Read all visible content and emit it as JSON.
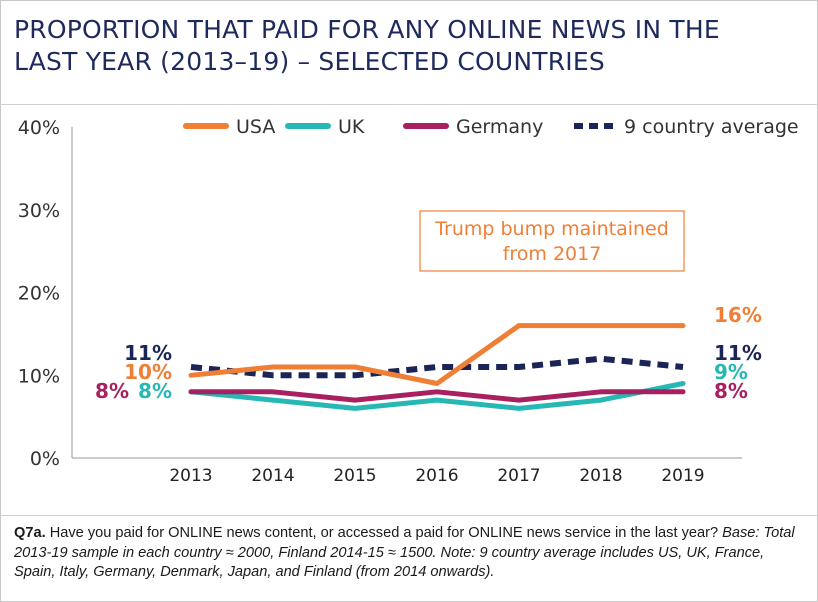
{
  "title_line1": "PROPORTION THAT PAID FOR ANY ONLINE NEWS IN THE",
  "title_line2": "LAST YEAR (2013–19) – SELECTED COUNTRIES",
  "note": {
    "q_label": "Q7a.",
    "q_text": " Have you paid for ONLINE news content, or accessed a paid for ONLINE news service in the last year? ",
    "base_text": "Base: Total 2013-19 sample in each country ≈ 2000, Finland 2014-15 ≈ 1500. Note: 9 country average includes US, UK, France, Spain, Italy, Germany, Denmark, Japan, and Finland (from 2014 onwards)."
  },
  "chart_data": {
    "type": "line",
    "title": "PROPORTION THAT PAID FOR ANY ONLINE NEWS IN THE LAST YEAR (2013–19) – SELECTED COUNTRIES",
    "x": [
      "2013",
      "2014",
      "2015",
      "2016",
      "2017",
      "2018",
      "2019"
    ],
    "ylim": [
      0,
      40
    ],
    "yticks": [
      "0%",
      "10%",
      "20%",
      "30%",
      "40%"
    ],
    "legend_position": "top",
    "grid": false,
    "annotation": [
      "Trump bump maintained",
      "from 2017"
    ],
    "series": [
      {
        "name": "USA",
        "color": "#f07f36",
        "dash": false,
        "values": [
          10,
          11,
          11,
          9,
          16,
          16,
          16
        ],
        "start_label": "10%",
        "end_label": "16%"
      },
      {
        "name": "UK",
        "color": "#27b8b5",
        "dash": false,
        "values": [
          8,
          7,
          6,
          7,
          6,
          7,
          9
        ],
        "start_label": "8%",
        "end_label": "9%"
      },
      {
        "name": "Germany",
        "color": "#a8205f",
        "dash": false,
        "values": [
          8,
          8,
          7,
          8,
          7,
          8,
          8
        ],
        "start_label": "8%",
        "end_label": "8%"
      },
      {
        "name": "9 country average",
        "color": "#1a2457",
        "dash": true,
        "values": [
          11,
          10,
          10,
          11,
          11,
          12,
          11
        ],
        "start_label": "11%",
        "end_label": "11%"
      }
    ]
  }
}
